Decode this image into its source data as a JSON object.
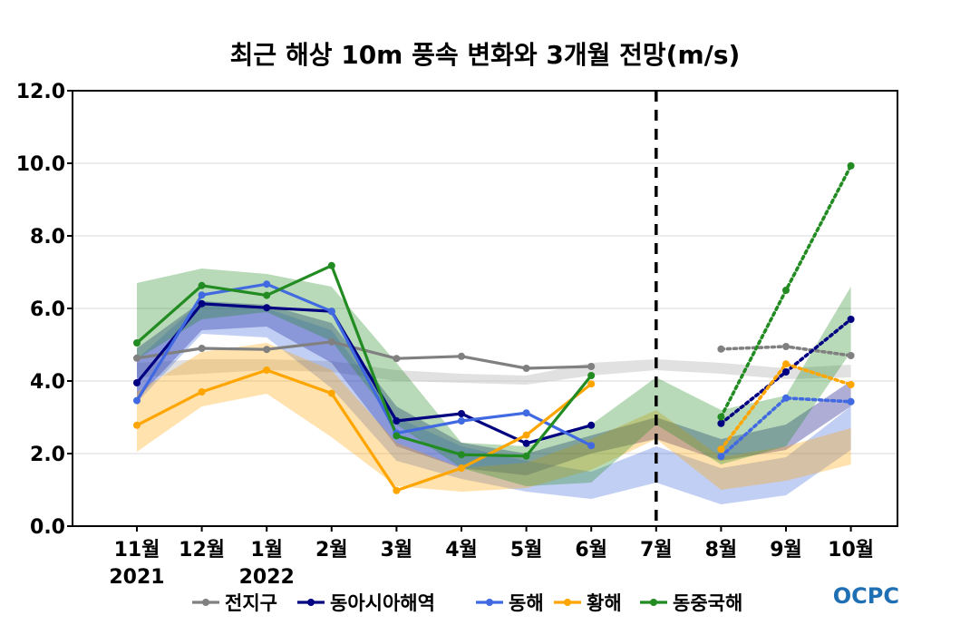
{
  "chart_data": {
    "type": "line",
    "title": "최근 해상 10m 풍속 변화와 3개월 전망(m/s)",
    "xlabel": "",
    "ylabel": "",
    "ylim": [
      0,
      12
    ],
    "yticks": [
      "0.0",
      "2.0",
      "4.0",
      "6.0",
      "8.0",
      "10.0",
      "12.0"
    ],
    "grid": true,
    "legend_position": "bottom",
    "categories": [
      "11월",
      "12월",
      "1월",
      "2월",
      "3월",
      "4월",
      "5월",
      "6월",
      "7월",
      "8월",
      "9월",
      "10월"
    ],
    "year_labels": [
      {
        "category": "11월",
        "text": "2021"
      },
      {
        "category": "1월",
        "text": "2022"
      }
    ],
    "forecast_divider_category": "7월",
    "series": [
      {
        "name": "전지구",
        "color": "#808080",
        "observed": [
          4.63,
          4.9,
          4.87,
          5.08,
          4.62,
          4.68,
          4.35,
          4.4
        ],
        "forecast": [
          4.88,
          4.95,
          4.7
        ],
        "band": [
          [
            4.1,
            4.5
          ],
          [
            4.2,
            4.6
          ],
          [
            4.3,
            4.6
          ],
          [
            4.25,
            4.55
          ],
          [
            4.0,
            4.3
          ],
          [
            3.95,
            4.2
          ],
          [
            3.9,
            4.15
          ],
          [
            4.15,
            4.5
          ],
          [
            4.3,
            4.6
          ],
          [
            4.2,
            4.5
          ],
          [
            4.05,
            4.35
          ],
          [
            4.1,
            4.45
          ]
        ]
      },
      {
        "name": "동아시아해역",
        "color": "#000080",
        "observed": [
          3.95,
          6.13,
          6.02,
          5.92,
          2.9,
          3.1,
          2.28,
          2.78
        ],
        "forecast": [
          2.83,
          4.25,
          5.7
        ],
        "band": [
          [
            3.5,
            4.9
          ],
          [
            5.4,
            6.2
          ],
          [
            5.5,
            6.1
          ],
          [
            4.5,
            5.6
          ],
          [
            2.2,
            3.3
          ],
          [
            1.6,
            2.3
          ],
          [
            1.4,
            2.0
          ],
          [
            2.0,
            2.5
          ],
          [
            2.4,
            3.0
          ],
          [
            1.8,
            2.4
          ],
          [
            2.1,
            2.8
          ],
          [
            3.3,
            4.0
          ]
        ]
      },
      {
        "name": "동해",
        "color": "#4169E1",
        "observed": [
          3.46,
          6.37,
          6.67,
          5.92,
          2.56,
          2.9,
          3.12,
          2.22
        ],
        "forecast": [
          1.92,
          3.53,
          3.43
        ],
        "band": [
          [
            3.4,
            4.6
          ],
          [
            5.3,
            6.2
          ],
          [
            5.2,
            6.0
          ],
          [
            3.8,
            5.4
          ],
          [
            1.8,
            3.0
          ],
          [
            1.3,
            2.2
          ],
          [
            0.95,
            1.8
          ],
          [
            0.75,
            1.5
          ],
          [
            1.2,
            2.2
          ],
          [
            0.6,
            1.6
          ],
          [
            0.85,
            1.9
          ],
          [
            2.1,
            3.3
          ]
        ]
      },
      {
        "name": "황해",
        "color": "#FFA500",
        "observed": [
          2.78,
          3.7,
          4.3,
          3.66,
          0.98,
          1.6,
          2.51,
          3.92
        ],
        "forecast": [
          2.12,
          4.47,
          3.9
        ],
        "band": [
          [
            2.05,
            3.7
          ],
          [
            3.3,
            4.8
          ],
          [
            3.65,
            5.05
          ],
          [
            2.45,
            4.3
          ],
          [
            1.1,
            2.3
          ],
          [
            0.95,
            1.6
          ],
          [
            1.05,
            1.75
          ],
          [
            1.55,
            2.4
          ],
          [
            2.4,
            3.2
          ],
          [
            1.0,
            1.9
          ],
          [
            1.25,
            2.2
          ],
          [
            1.7,
            2.7
          ]
        ]
      },
      {
        "name": "동중국해",
        "color": "#228B22",
        "observed": [
          5.05,
          6.63,
          6.36,
          7.18,
          2.49,
          1.97,
          1.93,
          4.15
        ],
        "forecast": [
          3.01,
          6.5,
          9.93
        ],
        "band": [
          [
            4.6,
            6.7
          ],
          [
            5.7,
            7.1
          ],
          [
            5.9,
            6.95
          ],
          [
            5.1,
            6.6
          ],
          [
            2.8,
            4.5
          ],
          [
            1.6,
            2.3
          ],
          [
            1.1,
            2.2
          ],
          [
            1.2,
            2.8
          ],
          [
            2.8,
            4.1
          ],
          [
            1.7,
            3.2
          ],
          [
            2.2,
            3.6
          ],
          [
            4.8,
            6.6
          ]
        ]
      }
    ]
  },
  "logo": {
    "text": "OCPC",
    "color": "#1f6fb4"
  }
}
